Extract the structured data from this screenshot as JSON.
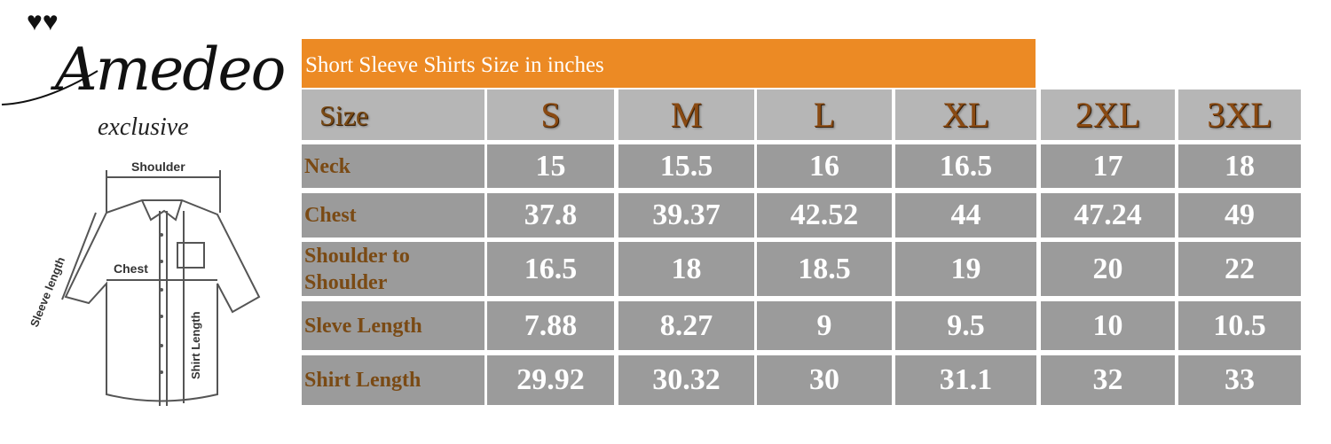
{
  "brand": {
    "name": "Amedeo",
    "tagline": "exclusive"
  },
  "diagram": {
    "labels": {
      "shoulder": "Shoulder",
      "chest": "Chest",
      "sleeve": "Sleeve length",
      "length": "Shirt Length"
    }
  },
  "table": {
    "title": "Short Sleeve Shirts Size in inches",
    "header_label": "Size",
    "sizes": [
      "S",
      "M",
      "L",
      "XL",
      "2XL",
      "3XL"
    ],
    "rows": [
      {
        "label": "Neck",
        "values": [
          "15",
          "15.5",
          "16",
          "16.5",
          "17",
          "18"
        ]
      },
      {
        "label": "Chest",
        "values": [
          "37.8",
          "39.37",
          "42.52",
          "44",
          "47.24",
          "49"
        ]
      },
      {
        "label": "Shoulder to Shoulder",
        "values": [
          "16.5",
          "18",
          "18.5",
          "19",
          "20",
          "22"
        ]
      },
      {
        "label": "Sleve Length",
        "values": [
          "7.88",
          "8.27",
          "9",
          "9.5",
          "10",
          "10.5"
        ]
      },
      {
        "label": "Shirt Length",
        "values": [
          "29.92",
          "30.32",
          "30",
          "31.1",
          "32",
          "33"
        ]
      }
    ]
  },
  "colors": {
    "title_bar": "#ec8a24",
    "header_bg": "#b6b6b6",
    "body_bg": "#9b9b9b",
    "label_text": "#7a4a14"
  }
}
